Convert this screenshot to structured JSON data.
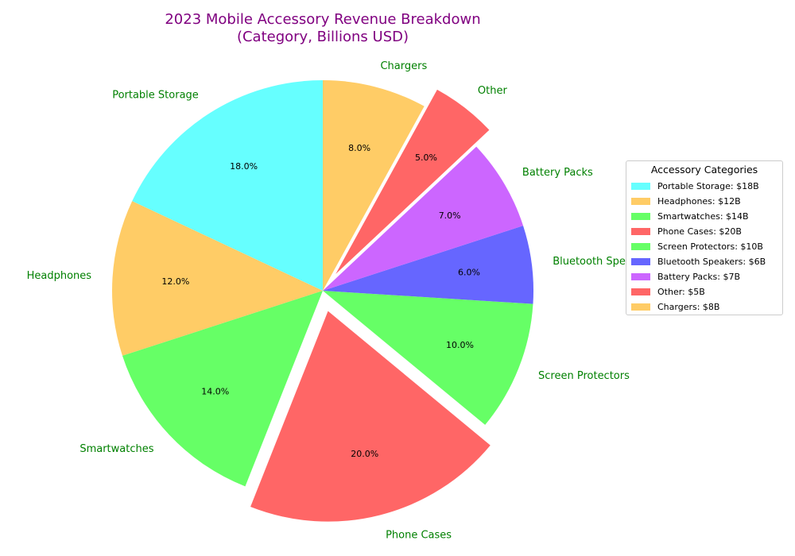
{
  "chart_data": {
    "type": "pie",
    "title": "2023 Mobile Accessory Revenue Breakdown",
    "subtitle": "(Category, Billions USD)",
    "unit": "Billions USD",
    "start_angle_deg": 90,
    "direction": "counterclockwise",
    "legend_title": "Accessory Categories",
    "legend_position": "right",
    "slices": [
      {
        "label": "Portable Storage",
        "value": 18,
        "percent_label": "18.0%",
        "legend_label": "Portable Storage: $18B",
        "color": "#66ffff",
        "exploded": false
      },
      {
        "label": "Headphones",
        "value": 12,
        "percent_label": "12.0%",
        "legend_label": "Headphones: $12B",
        "color": "#ffcc66",
        "exploded": false
      },
      {
        "label": "Smartwatches",
        "value": 14,
        "percent_label": "14.0%",
        "legend_label": "Smartwatches: $14B",
        "color": "#66ff66",
        "exploded": false
      },
      {
        "label": "Phone Cases",
        "value": 20,
        "percent_label": "20.0%",
        "legend_label": "Phone Cases: $20B",
        "color": "#ff6666",
        "exploded": true
      },
      {
        "label": "Screen Protectors",
        "value": 10,
        "percent_label": "10.0%",
        "legend_label": "Screen Protectors: $10B",
        "color": "#66ff66",
        "exploded": false
      },
      {
        "label": "Bluetooth Speakers",
        "value": 6,
        "percent_label": "6.0%",
        "legend_label": "Bluetooth Speakers: $6B",
        "color": "#6666ff",
        "exploded": false
      },
      {
        "label": "Battery Packs",
        "value": 7,
        "percent_label": "7.0%",
        "legend_label": "Battery Packs: $7B",
        "color": "#cc66ff",
        "exploded": false
      },
      {
        "label": "Other",
        "value": 5,
        "percent_label": "5.0%",
        "legend_label": "Other: $5B",
        "color": "#ff6666",
        "exploded": true
      },
      {
        "label": "Chargers",
        "value": 8,
        "percent_label": "8.0%",
        "legend_label": "Chargers: $8B",
        "color": "#ffcc66",
        "exploded": false
      }
    ]
  }
}
